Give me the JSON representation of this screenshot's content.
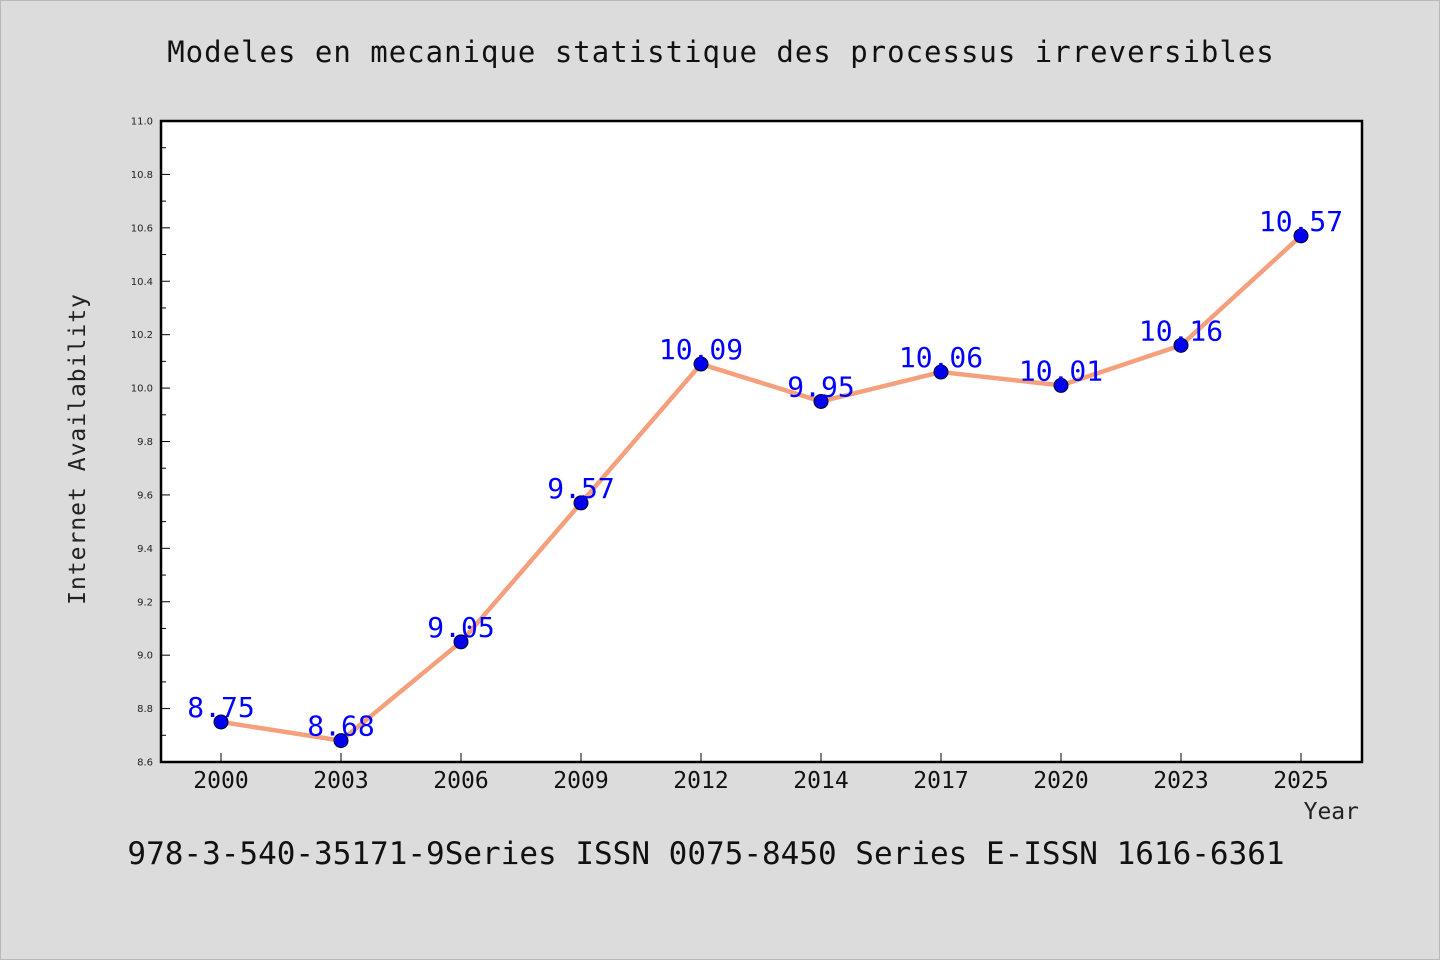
{
  "chart_data": {
    "type": "line",
    "title": "Modeles en mecanique statistique des processus irreversibles",
    "xlabel": "Year",
    "ylabel": "Internet Availability",
    "categories": [
      "2000",
      "2003",
      "2006",
      "2009",
      "2012",
      "2014",
      "2017",
      "2020",
      "2023",
      "2025"
    ],
    "series": [
      {
        "values": [
          8.75,
          8.68,
          9.05,
          9.57,
          10.09,
          9.95,
          10.06,
          10.01,
          10.16,
          10.57
        ],
        "data_labels": [
          "8.75",
          "8.68",
          "9.05",
          "9.57",
          "10.09",
          "9.95",
          "10.06",
          "10.01",
          "10.16",
          "10.57"
        ],
        "line_color": "#f4a07c",
        "marker_color": "#0000ee",
        "label_color": "#0000ff"
      }
    ],
    "ylim": [
      8.6,
      11.0
    ],
    "y_ticks": [
      "8.6",
      "8.8",
      "9.0",
      "9.2",
      "9.4",
      "9.6",
      "9.8",
      "10.0",
      "10.2",
      "10.4",
      "10.6",
      "10.8",
      "11.0"
    ],
    "grid": false,
    "legend": "none"
  },
  "footer_text": "978-3-540-35171-9Series ISSN 0075-8450 Series E-ISSN 1616-6361",
  "colors": {
    "background": "#dcdcdc",
    "plot_area": "#ffffff"
  }
}
